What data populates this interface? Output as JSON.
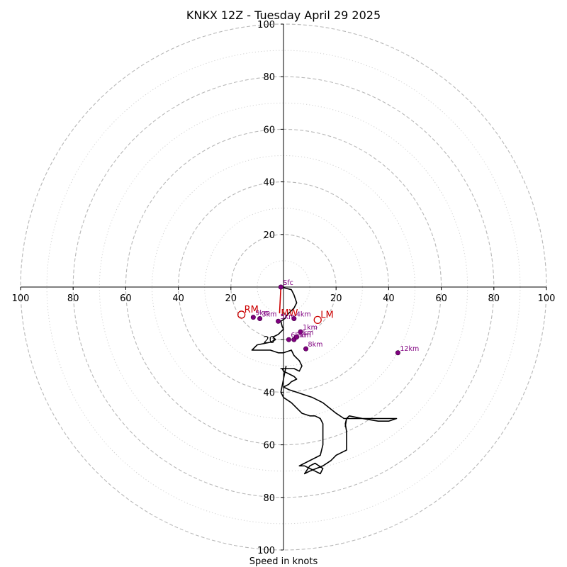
{
  "chart_data": {
    "type": "hodograph",
    "title": "KNKX 12Z - Tuesday April 29 2025",
    "xlabel": "Speed in knots",
    "units": "knots",
    "xlim": [
      -100,
      100
    ],
    "ylim": [
      -100,
      100
    ],
    "ring_step": 10,
    "labeled_ring_step": 20,
    "axis_tick_labels": {
      "x": [
        "100",
        "80",
        "60",
        "40",
        "20",
        "",
        "20",
        "40",
        "60",
        "80",
        "100"
      ],
      "y": [
        "100",
        "80",
        "60",
        "40",
        "20",
        "",
        "20",
        "40",
        "60",
        "80",
        "100"
      ]
    },
    "grid": true,
    "series": [
      {
        "style": "hodograph-trace",
        "color": "#000000",
        "u": [
          -1,
          3,
          4,
          5,
          4,
          2,
          1,
          0.5,
          -1,
          -0.5,
          0,
          -2,
          -4,
          -3,
          -5,
          -10,
          -12,
          -5,
          -2,
          0,
          3,
          4,
          6,
          7,
          6,
          4,
          3,
          2,
          1,
          0,
          -1,
          -0.5,
          0,
          2,
          4,
          5,
          3,
          2,
          0,
          2,
          5,
          8,
          11,
          15,
          20,
          23,
          24,
          23.5,
          24,
          25,
          30,
          36,
          40,
          43,
          43,
          40,
          36,
          30,
          24,
          23.5,
          24,
          24,
          24,
          24,
          22,
          20,
          18,
          15,
          10,
          8,
          10,
          12,
          15,
          14,
          12,
          10,
          8,
          6,
          14,
          15,
          15,
          15,
          14,
          12,
          10,
          7,
          5,
          3,
          0,
          -1,
          0,
          1
        ],
        "v": [
          0,
          -1,
          -3,
          -6,
          -8,
          -10,
          -11,
          -12,
          -13,
          -15,
          -16,
          -18,
          -19,
          -20,
          -21,
          -22,
          -24,
          -24,
          -25,
          -25,
          -24,
          -26,
          -28,
          -30,
          -32,
          -31,
          -31,
          -31,
          -31,
          -31,
          -31,
          -31,
          -32,
          -33,
          -34,
          -35,
          -36,
          -37,
          -38,
          -39,
          -40,
          -41,
          -42,
          -44,
          -48,
          -50,
          -50,
          -53,
          -50,
          -49,
          -50,
          -51,
          -51,
          -50,
          -50,
          -50,
          -50,
          -50,
          -50,
          -52,
          -55,
          -58,
          -60,
          -62,
          -63,
          -64,
          -66,
          -68,
          -70,
          -71,
          -68,
          -67,
          -69,
          -71,
          -70,
          -69,
          -68,
          -68,
          -64,
          -60,
          -55,
          -52,
          -50,
          -49,
          -49,
          -48,
          -46,
          -44,
          -42,
          -40,
          -35,
          -30
        ]
      }
    ],
    "height_points": [
      {
        "label": "Sfc",
        "u": -1,
        "v": 0
      },
      {
        "label": "1km",
        "u": 6.5,
        "v": -17
      },
      {
        "label": "2km",
        "u": 4,
        "v": -20
      },
      {
        "label": "3km",
        "u": -9,
        "v": -12
      },
      {
        "label": "4km",
        "u": 4,
        "v": -12
      },
      {
        "label": "5km",
        "u": -2,
        "v": -13
      },
      {
        "label": "6km",
        "u": 2,
        "v": -20
      },
      {
        "label": "7km",
        "u": 5,
        "v": -19
      },
      {
        "label": "8km",
        "u": 8.5,
        "v": -23.5
      },
      {
        "label": "9km",
        "u": -11.5,
        "v": -11.5
      },
      {
        "label": "12km",
        "u": 43.5,
        "v": -25
      }
    ],
    "height_point_color": "#800080",
    "storm_motion": {
      "color": "#cc0000",
      "rm": {
        "label": "RM",
        "u": -16,
        "v": -10.5
      },
      "lm": {
        "label": "LM",
        "u": 13,
        "v": -12.5
      },
      "mw": {
        "label": "MW",
        "u": -1.5,
        "v": -10
      },
      "vector": {
        "from": {
          "u": -1,
          "v": 0
        },
        "to": {
          "u": -1.5,
          "v": -10
        }
      }
    }
  }
}
